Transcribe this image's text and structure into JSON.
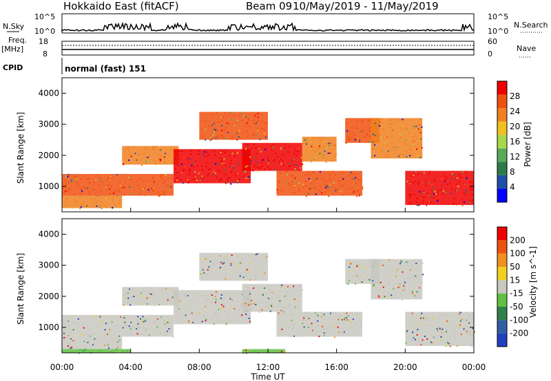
{
  "header": {
    "station": "Hokkaido East (fitACF)",
    "beam": "Beam 09",
    "dates": "10/May/2019 - 11/May/2019"
  },
  "top_panel": {
    "nsky_label": "N.Sky",
    "nsky_ticks": [
      "10^5",
      "10^0"
    ],
    "nsearch_label": "N.Search",
    "nsearch_ticks": [
      "10^5",
      "10^0"
    ],
    "freq_label_1": "Freq.",
    "freq_label_2": "[MHz]",
    "freq_ticks": [
      "18",
      "8"
    ],
    "nave_label": "Nave",
    "nave_ticks": [
      "60",
      "0"
    ],
    "cpid_label": "CPID",
    "cpid_value": "normal (fast) 151"
  },
  "x_axis": {
    "label": "Time UT",
    "ticks": [
      "00:00",
      "04:00",
      "08:00",
      "12:00",
      "16:00",
      "20:00",
      "00:00"
    ]
  },
  "colors": {
    "power_scale": [
      "#0000ff",
      "#1f4fa8",
      "#2f7a4a",
      "#5aa85a",
      "#a8d84a",
      "#f0c020",
      "#f08020",
      "#f05010",
      "#f00000"
    ],
    "velocity_scale": [
      "#2040c0",
      "#2f5fa0",
      "#30804a",
      "#60c040",
      "#c8c8c0",
      "#f0d020",
      "#f09020",
      "#f05010",
      "#f00000"
    ]
  },
  "chart_data": [
    {
      "type": "heatmap",
      "name": "power",
      "ylabel": "Slant Range [km]",
      "ylim": [
        180,
        4500
      ],
      "yticks": [
        "4000",
        "3000",
        "2000",
        "1000"
      ],
      "xlim_hours": [
        0,
        24
      ],
      "colorbar_label": "Power [dB]",
      "colorbar_ticks": [
        "28",
        "24",
        "20",
        "16",
        "12",
        "8",
        "4"
      ],
      "bands": [
        {
          "t0": 0.0,
          "t1": 6.5,
          "r0": 700,
          "r1": 1400,
          "c": "#f05010"
        },
        {
          "t0": 0.0,
          "t1": 3.5,
          "r0": 300,
          "r1": 700,
          "c": "#f08020"
        },
        {
          "t0": 3.5,
          "t1": 6.8,
          "r0": 1700,
          "r1": 2300,
          "c": "#f08020"
        },
        {
          "t0": 6.5,
          "t1": 11.0,
          "r0": 1100,
          "r1": 2200,
          "c": "#f00000"
        },
        {
          "t0": 8.0,
          "t1": 12.0,
          "r0": 2500,
          "r1": 3400,
          "c": "#f05010"
        },
        {
          "t0": 10.5,
          "t1": 14.0,
          "r0": 1500,
          "r1": 2400,
          "c": "#f00000"
        },
        {
          "t0": 12.5,
          "t1": 17.5,
          "r0": 700,
          "r1": 1500,
          "c": "#f05010"
        },
        {
          "t0": 16.5,
          "t1": 18.5,
          "r0": 2400,
          "r1": 3200,
          "c": "#f05010"
        },
        {
          "t0": 18.0,
          "t1": 21.0,
          "r0": 1900,
          "r1": 3200,
          "c": "#f08020"
        },
        {
          "t0": 20.0,
          "t1": 24.0,
          "r0": 400,
          "r1": 1500,
          "c": "#f00000"
        },
        {
          "t0": 14.0,
          "t1": 16.0,
          "r0": 1800,
          "r1": 2600,
          "c": "#f08020"
        }
      ]
    },
    {
      "type": "heatmap",
      "name": "velocity",
      "ylabel": "Slant Range [km]",
      "ylim": [
        180,
        4500
      ],
      "yticks": [
        "4000",
        "3000",
        "2000",
        "1000"
      ],
      "xlim_hours": [
        0,
        24
      ],
      "colorbar_label": "Velocity [m s^-1]",
      "colorbar_ticks": [
        "200",
        "100",
        "50",
        "15",
        "-15",
        "-50",
        "-100",
        "-200"
      ],
      "bands": [
        {
          "t0": 0.0,
          "t1": 6.5,
          "r0": 700,
          "r1": 1400,
          "c": "#c8c8c0"
        },
        {
          "t0": 0.0,
          "t1": 3.5,
          "r0": 300,
          "r1": 700,
          "c": "#c8c8c0"
        },
        {
          "t0": 3.5,
          "t1": 6.8,
          "r0": 1700,
          "r1": 2300,
          "c": "#c8c8c0"
        },
        {
          "t0": 6.5,
          "t1": 11.0,
          "r0": 1100,
          "r1": 2200,
          "c": "#c8c8c0"
        },
        {
          "t0": 8.0,
          "t1": 12.0,
          "r0": 2500,
          "r1": 3400,
          "c": "#c8c8c0"
        },
        {
          "t0": 10.5,
          "t1": 14.0,
          "r0": 1500,
          "r1": 2400,
          "c": "#c8c8c0"
        },
        {
          "t0": 12.5,
          "t1": 17.5,
          "r0": 700,
          "r1": 1500,
          "c": "#c8c8c0"
        },
        {
          "t0": 16.5,
          "t1": 18.5,
          "r0": 2400,
          "r1": 3200,
          "c": "#c8c8c0"
        },
        {
          "t0": 18.0,
          "t1": 21.0,
          "r0": 1900,
          "r1": 3200,
          "c": "#c8c8c0"
        },
        {
          "t0": 20.0,
          "t1": 24.0,
          "r0": 400,
          "r1": 1500,
          "c": "#c8c8c0"
        },
        {
          "t0": 0.0,
          "t1": 4.0,
          "r0": 180,
          "r1": 300,
          "c": "#60c040"
        },
        {
          "t0": 10.5,
          "t1": 13.0,
          "r0": 180,
          "r1": 300,
          "c": "#60c040"
        }
      ]
    }
  ]
}
